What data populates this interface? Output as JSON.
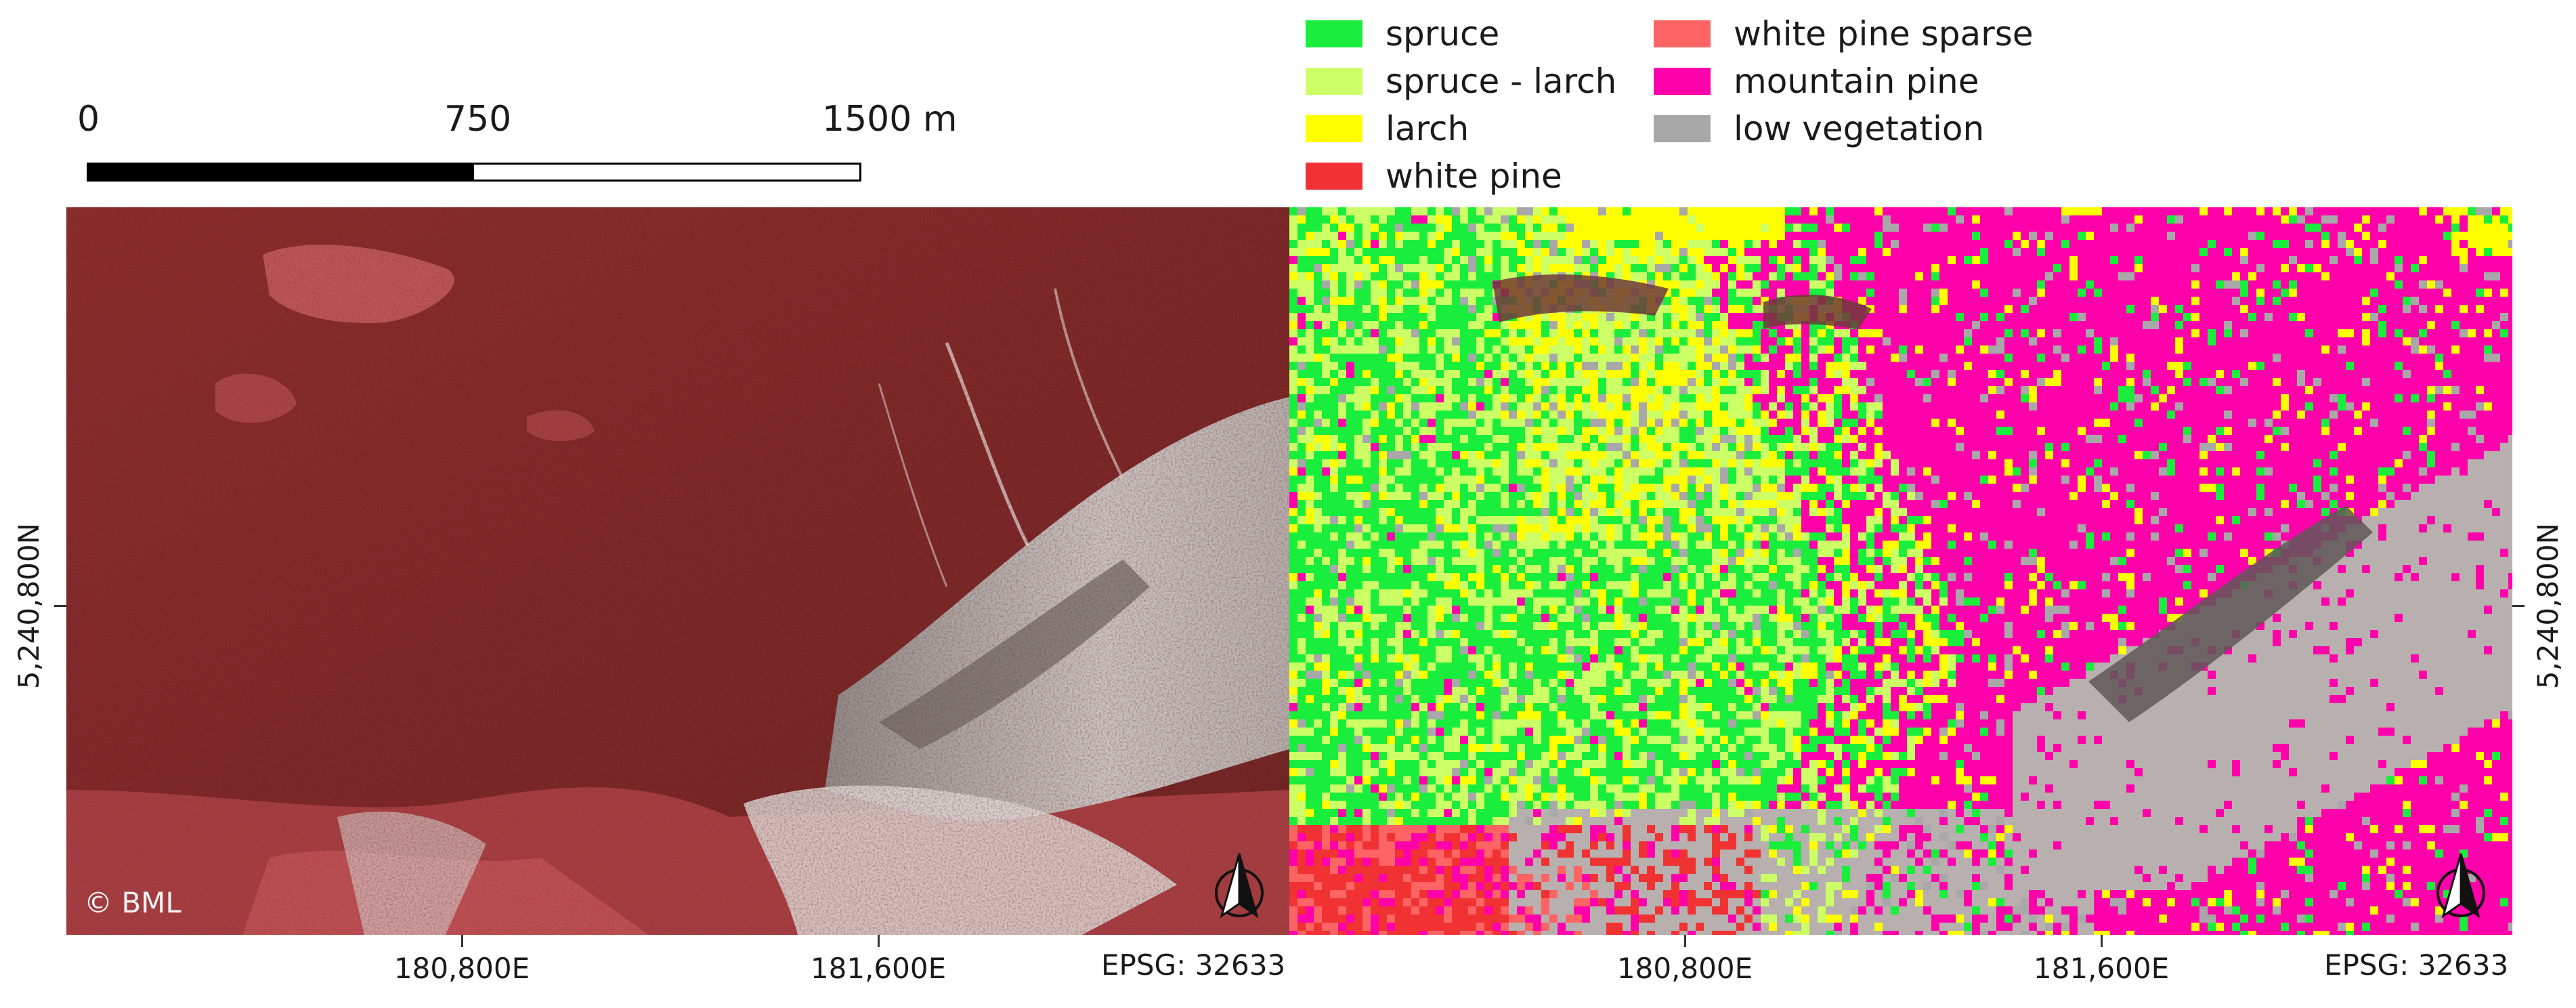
{
  "scale_bar": {
    "labels": [
      "0",
      "750",
      "1500 m"
    ]
  },
  "legend": {
    "items": [
      {
        "label": "spruce",
        "color": "#19ee3c"
      },
      {
        "label": "spruce - larch",
        "color": "#ccff66"
      },
      {
        "label": "larch",
        "color": "#ffff00"
      },
      {
        "label": "white pine",
        "color": "#f03232"
      },
      {
        "label": "white pine sparse",
        "color": "#ff6464"
      },
      {
        "label": "mountain pine",
        "color": "#ff00aa"
      },
      {
        "label": "low vegetation",
        "color": "#a8a8a8"
      }
    ]
  },
  "left_map": {
    "easting_labels": [
      "180,800E",
      "181,600E"
    ],
    "northing_label": "5,240,800N",
    "epsg": "EPSG: 32633",
    "credit": "© BML",
    "north_arrow": "north-arrow-icon"
  },
  "right_map": {
    "easting_labels": [
      "180,800E",
      "181,600E"
    ],
    "northing_label": "5,240,800N",
    "epsg": "EPSG: 32633",
    "north_arrow": "north-arrow-icon"
  }
}
